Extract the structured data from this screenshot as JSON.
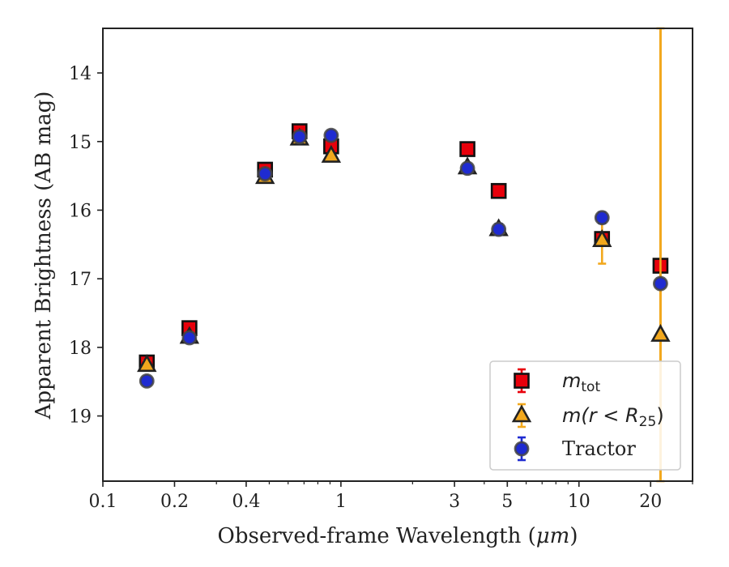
{
  "chart_data": {
    "type": "scatter",
    "xlabel_main": "Observed-frame Wavelength (",
    "xlabel_unit": "μm",
    "xlabel_end": ")",
    "ylabel": "Apparent Brightness (AB mag)",
    "xscale": "log",
    "xlim": [
      0.1,
      30
    ],
    "ylim": [
      19.95,
      13.35
    ],
    "y_inverted": true,
    "grid": false,
    "legend_position": "lower-right",
    "x_ticks": [
      {
        "value": 0.1,
        "label": "0.1"
      },
      {
        "value": 0.2,
        "label": "0.2"
      },
      {
        "value": 0.4,
        "label": "0.4"
      },
      {
        "value": 1,
        "label": "1"
      },
      {
        "value": 3,
        "label": "3"
      },
      {
        "value": 5,
        "label": "5"
      },
      {
        "value": 10,
        "label": "10"
      },
      {
        "value": 20,
        "label": "20"
      }
    ],
    "y_ticks": [
      14,
      15,
      16,
      17,
      18,
      19
    ],
    "vertical_line": {
      "x": 22,
      "color": "#f2a81d"
    },
    "series": [
      {
        "name_main": "m",
        "name_sub": "tot",
        "marker": "square",
        "color": "#e8000b",
        "error_color": "#e8000b",
        "x": [
          0.153,
          0.231,
          0.48,
          0.67,
          0.91,
          3.4,
          4.6,
          12.5,
          22
        ],
        "y": [
          18.22,
          17.72,
          15.41,
          14.85,
          15.07,
          15.11,
          15.72,
          16.42,
          16.81
        ],
        "yerr": [
          0.05,
          0.04,
          0.03,
          0.03,
          0.03,
          0.05,
          0.05,
          0.07,
          0.05
        ]
      },
      {
        "name_main": "m",
        "name_rest": "(r < R",
        "name_sub": "25",
        "name_end": ")",
        "marker": "triangle",
        "color": "#f2a81d",
        "error_color": "#f2a81d",
        "x": [
          0.153,
          0.231,
          0.48,
          0.67,
          0.91,
          3.4,
          4.6,
          12.5,
          22
        ],
        "y": [
          18.26,
          17.85,
          15.52,
          14.96,
          15.21,
          15.38,
          16.28,
          16.44,
          17.82
        ],
        "yerr": [
          0.06,
          0.07,
          0.04,
          0.03,
          0.03,
          0.05,
          0.06,
          0.34,
          7.5
        ]
      },
      {
        "name": "Tractor",
        "marker": "circle",
        "color": "#1f2bd1",
        "error_color": "#1f2bd1",
        "x": [
          0.153,
          0.231,
          0.48,
          0.67,
          0.91,
          3.4,
          4.6,
          12.5,
          22
        ],
        "y": [
          18.49,
          17.86,
          15.47,
          14.93,
          14.91,
          15.39,
          16.28,
          16.11,
          17.07
        ],
        "yerr": [
          0.06,
          0.07,
          0.04,
          0.03,
          0.06,
          0.05,
          0.08,
          0.08,
          0.06
        ]
      }
    ]
  }
}
